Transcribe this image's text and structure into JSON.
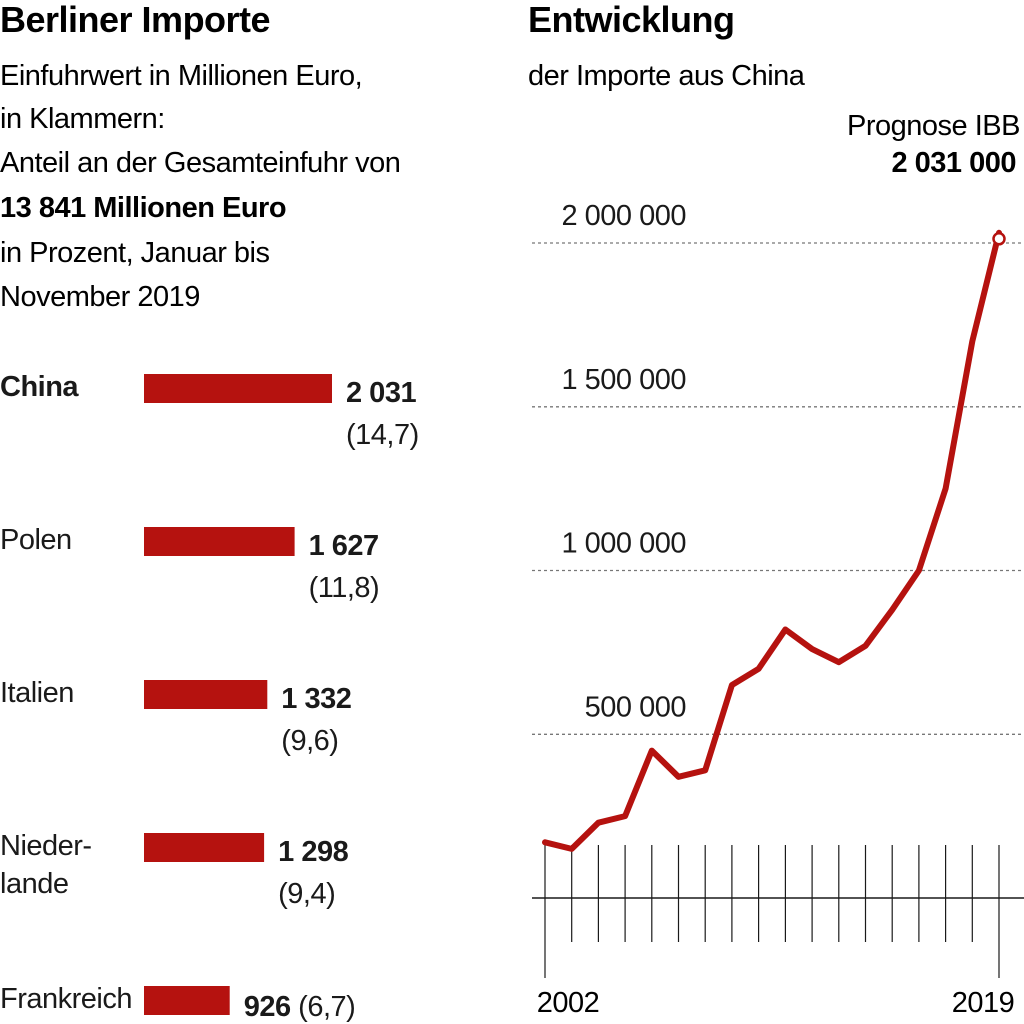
{
  "left_panel": {
    "title": "Berliner Importe",
    "subtitle_lines": [
      "Einfuhrwert in Millionen Euro,",
      "in Klammern:",
      "Anteil an der Gesamteinfuhr von"
    ],
    "subtitle_bold": "13 841 Millionen Euro",
    "subtitle_tail": [
      "in Prozent, Januar bis",
      "November 2019"
    ]
  },
  "right_panel": {
    "title": "Entwicklung",
    "subtitle": "der Importe aus China",
    "annotation_label": "Prognose IBB",
    "annotation_value": "2 031 000",
    "x_start_label": "2002",
    "x_end_label": "2019",
    "y_tick_labels": [
      "2 000 000",
      "1 500 000",
      "1 000 000",
      "500 000"
    ]
  },
  "colors": {
    "bar": "#b5120f",
    "line": "#b5120f",
    "text": "#1a1a1a",
    "grid": "#777777"
  },
  "chart_data": [
    {
      "type": "bar",
      "orientation": "horizontal",
      "unit": "Millionen Euro",
      "categories": [
        {
          "label": "China",
          "label_lines": [
            "China"
          ],
          "value": 2031,
          "value_label": "2 031",
          "share": 14.7,
          "share_label": "(14,7)",
          "bold_label": true
        },
        {
          "label": "Polen",
          "label_lines": [
            "Polen"
          ],
          "value": 1627,
          "value_label": "1 627",
          "share": 11.8,
          "share_label": "(11,8)",
          "bold_label": false
        },
        {
          "label": "Italien",
          "label_lines": [
            "Italien"
          ],
          "value": 1332,
          "value_label": "1 332",
          "share": 9.6,
          "share_label": "(9,6)",
          "bold_label": false
        },
        {
          "label": "Niederlande",
          "label_lines": [
            "Nieder-",
            "lande"
          ],
          "value": 1298,
          "value_label": "1 298",
          "share": 9.4,
          "share_label": "(9,4)",
          "bold_label": false
        },
        {
          "label": "Frankreich",
          "label_lines": [
            "Frankreich"
          ],
          "value": 926,
          "value_label": "926",
          "share": 6.7,
          "share_label": "(6,7)",
          "bold_label": false
        }
      ]
    },
    {
      "type": "line",
      "series_color": "#b5120f",
      "x": [
        2002,
        2003,
        2004,
        2005,
        2006,
        2007,
        2008,
        2009,
        2010,
        2011,
        2012,
        2013,
        2014,
        2015,
        2016,
        2017,
        2018,
        2019
      ],
      "y": [
        170000,
        150000,
        230000,
        250000,
        450000,
        370000,
        390000,
        650000,
        700000,
        820000,
        760000,
        720000,
        770000,
        880000,
        1000000,
        1250000,
        1700000,
        2031000
      ],
      "ylim": [
        0,
        2150000
      ],
      "y_ticks": [
        500000,
        1000000,
        1500000,
        2000000
      ],
      "grid": "horizontal dashed",
      "highlight_last_point": true
    }
  ]
}
